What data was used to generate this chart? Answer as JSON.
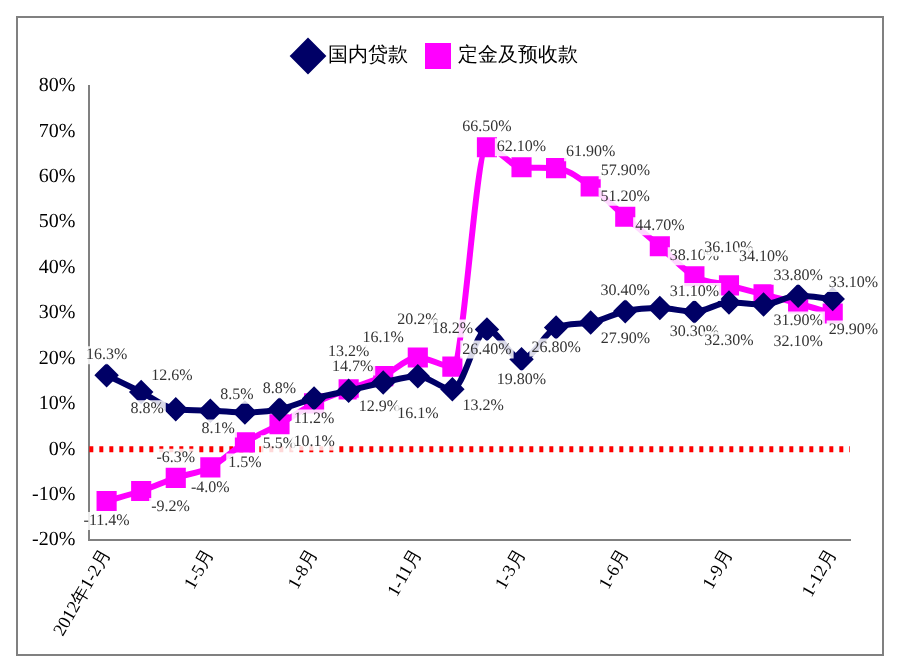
{
  "chart_data": {
    "type": "line",
    "categories": [
      "2012年1-2月",
      null,
      null,
      "1-5月",
      null,
      null,
      "1-8月",
      null,
      null,
      "1-11月",
      null,
      null,
      "1-3月",
      null,
      null,
      "1-6月",
      null,
      null,
      "1-9月",
      null,
      null,
      "1-12月"
    ],
    "series": [
      {
        "name": "国内贷款",
        "color": "#000066",
        "marker": "diamond",
        "values": [
          16.3,
          12.6,
          8.8,
          8.5,
          8.1,
          8.8,
          11.2,
          12.9,
          14.7,
          16.1,
          13.2,
          26.4,
          19.8,
          26.8,
          27.9,
          30.4,
          31.1,
          30.3,
          32.3,
          31.9,
          33.8,
          33.1
        ],
        "value_labels": [
          "16.3%",
          "12.6%",
          "8.8%",
          "8.5%",
          "8.1%",
          "8.8%",
          "11.2%",
          "12.9%",
          "14.7%",
          "16.1%",
          "13.2%",
          "26.40%",
          "19.80%",
          "26.80%",
          "27.90%",
          "30.40%",
          "31.10%",
          "30.30%",
          "32.30%",
          "31.90%",
          "33.80%",
          "33.10%"
        ]
      },
      {
        "name": "定金及预收款",
        "color": "#ff00ff",
        "marker": "square",
        "values": [
          -11.4,
          -9.2,
          -6.3,
          -4.0,
          1.5,
          5.5,
          10.1,
          13.2,
          16.1,
          20.2,
          18.2,
          66.5,
          62.1,
          61.9,
          57.9,
          51.2,
          44.7,
          38.1,
          36.1,
          34.1,
          32.1,
          29.9
        ],
        "value_labels": [
          "-11.4%",
          "-9.2%",
          "-6.3%",
          "-4.0%",
          "1.5%",
          "5.5%",
          "10.1%",
          "13.2%",
          "16.1%",
          "20.2%",
          "18.2%",
          "66.50%",
          "62.10%",
          "61.90%",
          "57.90%",
          "51.20%",
          "44.70%",
          "38.10%",
          "36.10%",
          "34.10%",
          "32.10%",
          "29.90%"
        ]
      }
    ],
    "ylim": [
      -20,
      80
    ],
    "yticks": [
      {
        "value": -20,
        "label": "-20%"
      },
      {
        "value": -10,
        "label": "-10%"
      },
      {
        "value": 0,
        "label": "0%"
      },
      {
        "value": 10,
        "label": "10%"
      },
      {
        "value": 20,
        "label": "20%"
      },
      {
        "value": 30,
        "label": "30%"
      },
      {
        "value": 40,
        "label": "40%"
      },
      {
        "value": 50,
        "label": "50%"
      },
      {
        "value": 60,
        "label": "60%"
      },
      {
        "value": 70,
        "label": "70%"
      },
      {
        "value": 80,
        "label": "80%"
      }
    ],
    "ref_lines": [
      {
        "axis": "y",
        "value": 0,
        "color": "#ff0000",
        "line_style": "dotted"
      }
    ],
    "grid": false,
    "legend": "top",
    "line_style": "solid"
  }
}
